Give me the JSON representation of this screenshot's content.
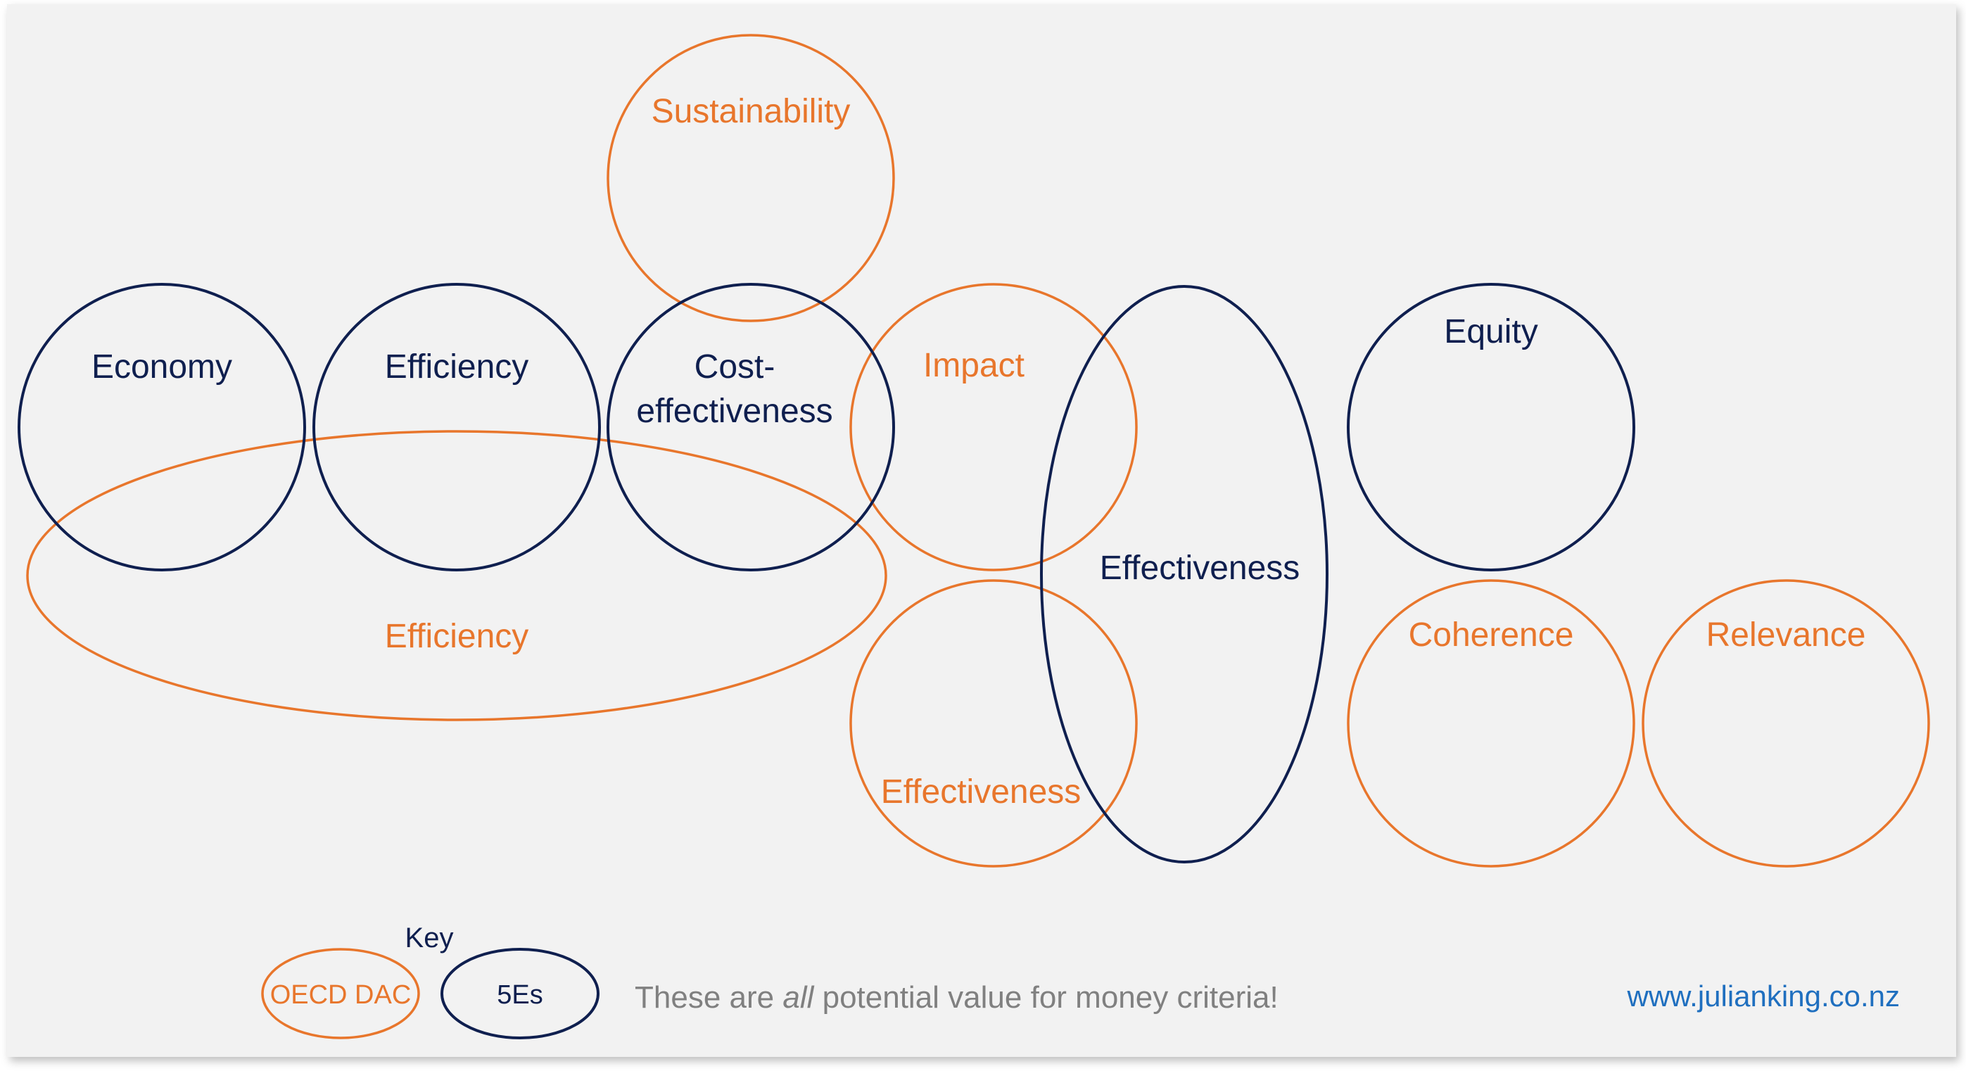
{
  "labels": {
    "sustainability": "Sustainability",
    "economy": "Economy",
    "efficiency_5e": "Efficiency",
    "cost_line1": "Cost-",
    "cost_line2": "effectiveness",
    "impact": "Impact",
    "effectiveness_5e": "Effectiveness",
    "equity": "Equity",
    "efficiency_dac": "Efficiency",
    "effectiveness_dac": "Effectiveness",
    "coherence": "Coherence",
    "relevance": "Relevance"
  },
  "key": {
    "title": "Key",
    "oecd": "OECD DAC",
    "fives": "5Es"
  },
  "footer": {
    "note_before": "These are ",
    "note_emphasis": "all",
    "note_after": " potential value for money criteria!",
    "website": "www.julianking.co.nz"
  },
  "colors": {
    "navy": "#0f1f4f",
    "orange": "#e8762c",
    "background": "#f2f2f2",
    "link": "#1f6fbf"
  }
}
